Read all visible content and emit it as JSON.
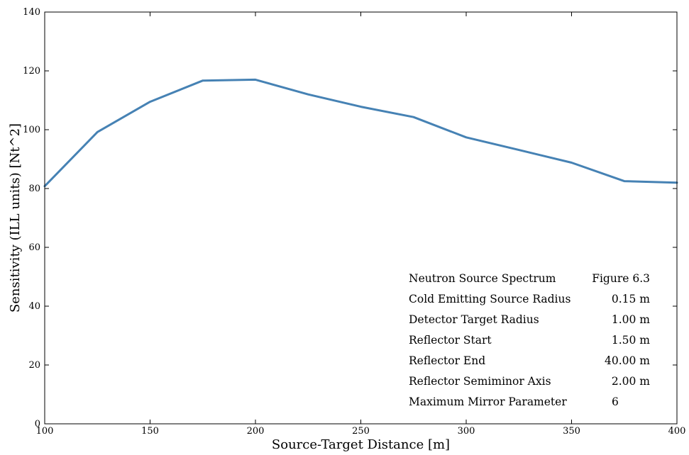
{
  "chart_data": {
    "type": "line",
    "xlabel": "Source-Target Distance [m]",
    "ylabel": "Sensitivity (ILL units) [Nt^2]",
    "xlim": [
      100,
      400
    ],
    "ylim": [
      0,
      140
    ],
    "xticks": [
      100,
      150,
      200,
      250,
      300,
      350,
      400
    ],
    "yticks": [
      0,
      20,
      40,
      60,
      80,
      100,
      120,
      140
    ],
    "grid": false,
    "series": [
      {
        "color": "#4682b4",
        "x": [
          100,
          125,
          150,
          175,
          200,
          225,
          250,
          275,
          300,
          325,
          350,
          375,
          400
        ],
        "y": [
          80.8,
          99.2,
          109.5,
          116.7,
          117.0,
          112.0,
          107.8,
          104.3,
          97.4,
          93.1,
          88.8,
          82.5,
          82.0
        ]
      }
    ],
    "annotation_table": [
      {
        "label": "Neutron Source Spectrum",
        "value": "Figure 6.3"
      },
      {
        "label": "Cold Emitting Source Radius",
        "value": "0.15 m"
      },
      {
        "label": "Detector Target Radius",
        "value": "1.00 m"
      },
      {
        "label": "Reflector Start",
        "value": "1.50 m"
      },
      {
        "label": "Reflector End",
        "value": "40.00 m"
      },
      {
        "label": "Reflector Semiminor Axis",
        "value": "2.00 m"
      },
      {
        "label": "Maximum Mirror Parameter",
        "value": "6"
      }
    ]
  }
}
